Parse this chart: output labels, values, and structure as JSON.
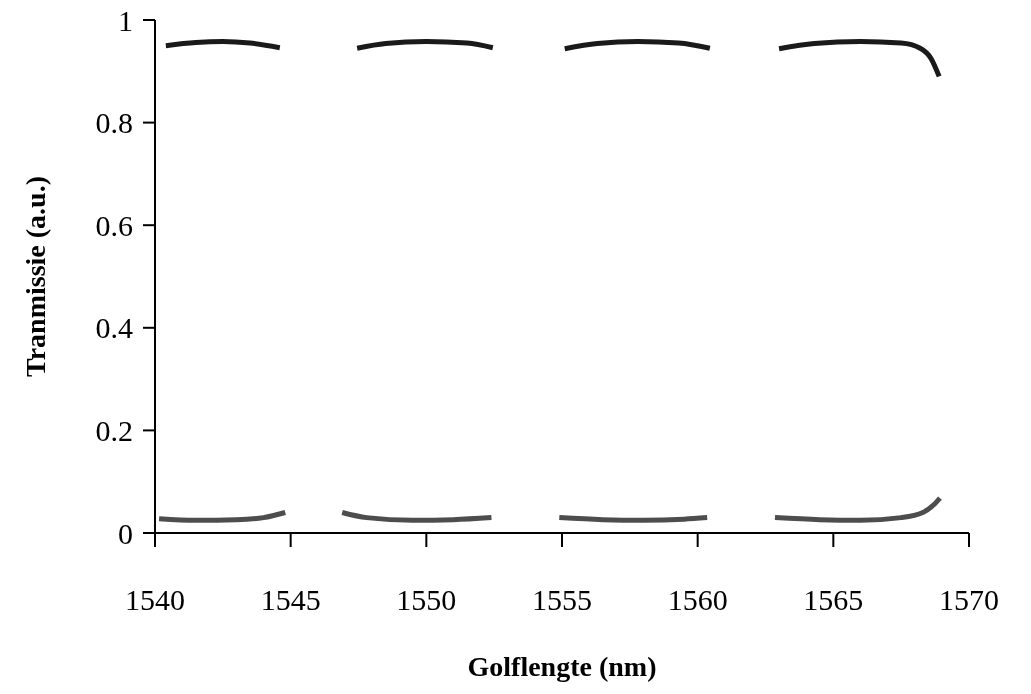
{
  "chart_data": {
    "type": "line",
    "xlabel": "Golflengte (nm)",
    "ylabel": "Tranmissie (a.u.)",
    "xlim": [
      1540,
      1570
    ],
    "ylim": [
      0,
      1
    ],
    "xticks": [
      1540,
      1545,
      1550,
      1555,
      1560,
      1565,
      1570
    ],
    "yticks": [
      0,
      0.2,
      0.4,
      0.6,
      0.8,
      1
    ],
    "grid": false,
    "marker": "none",
    "line_style": "solid",
    "series": [
      {
        "color": "#1a1a1a",
        "x": [
          1540.4,
          1541.5,
          1542.5,
          1543.5,
          1544.6,
          1546,
          1547.45,
          1548.5,
          1550,
          1551.5,
          1552.45,
          1553.8,
          1555.1,
          1556.3,
          1557.8,
          1559.3,
          1560.45,
          1561.7,
          1563,
          1564.3,
          1566,
          1567.5,
          1568.2,
          1568.6,
          1568.9
        ],
        "values": [
          0.95,
          0.956,
          0.958,
          0.955,
          0.946,
          null,
          0.945,
          0.954,
          0.958,
          0.955,
          0.946,
          null,
          0.944,
          0.954,
          0.958,
          0.955,
          0.945,
          null,
          0.944,
          0.954,
          0.958,
          0.955,
          0.945,
          0.925,
          0.89
        ]
      },
      {
        "color": "#4d4d4d",
        "x": [
          1540.15,
          1541.5,
          1543,
          1544,
          1544.8,
          1545.8,
          1546.9,
          1547.8,
          1549.5,
          1551,
          1552.4,
          1553.6,
          1554.9,
          1556.5,
          1558,
          1559.5,
          1560.35,
          1561.6,
          1562.85,
          1564.5,
          1566,
          1567.5,
          1568.3,
          1568.7,
          1568.93
        ],
        "values": [
          0.028,
          0.025,
          0.026,
          0.03,
          0.04,
          null,
          0.04,
          0.03,
          0.025,
          0.026,
          0.03,
          null,
          0.03,
          0.026,
          0.025,
          0.027,
          0.03,
          null,
          0.03,
          0.026,
          0.025,
          0.03,
          0.04,
          0.055,
          0.068
        ]
      }
    ]
  }
}
